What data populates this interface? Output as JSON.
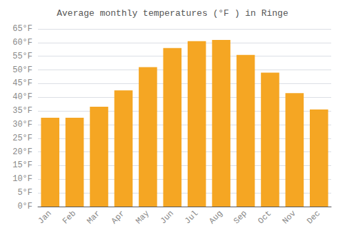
{
  "chart_data": {
    "type": "bar",
    "title": "Average monthly temperatures (°F ) in Ringe",
    "categories": [
      "Jan",
      "Feb",
      "Mar",
      "Apr",
      "May",
      "Jun",
      "Jul",
      "Aug",
      "Sep",
      "Oct",
      "Nov",
      "Dec"
    ],
    "values": [
      32.5,
      32.5,
      36.5,
      42.5,
      51.0,
      58.0,
      60.5,
      61.0,
      55.5,
      49.0,
      41.5,
      35.5
    ],
    "color": "#F5A623",
    "ylim": [
      0,
      65
    ],
    "yticks": [
      {
        "value": 0,
        "label": "0°F"
      },
      {
        "value": 5,
        "label": "5°F"
      },
      {
        "value": 10,
        "label": "10°F"
      },
      {
        "value": 15,
        "label": "15°F"
      },
      {
        "value": 20,
        "label": "20°F"
      },
      {
        "value": 25,
        "label": "25°F"
      },
      {
        "value": 30,
        "label": "30°F"
      },
      {
        "value": 35,
        "label": "35°F"
      },
      {
        "value": 40,
        "label": "40°F"
      },
      {
        "value": 45,
        "label": "45°F"
      },
      {
        "value": 50,
        "label": "50°F"
      },
      {
        "value": 55,
        "label": "55°F"
      },
      {
        "value": 60,
        "label": "60°F"
      },
      {
        "value": 65,
        "label": "65°F"
      }
    ],
    "grid": true
  }
}
